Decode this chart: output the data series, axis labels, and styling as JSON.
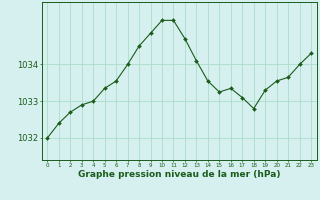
{
  "x": [
    0,
    1,
    2,
    3,
    4,
    5,
    6,
    7,
    8,
    9,
    10,
    11,
    12,
    13,
    14,
    15,
    16,
    17,
    18,
    19,
    20,
    21,
    22,
    23
  ],
  "y": [
    1032.0,
    1032.4,
    1032.7,
    1032.9,
    1033.0,
    1033.35,
    1033.55,
    1034.0,
    1034.5,
    1034.85,
    1035.2,
    1035.2,
    1034.7,
    1034.1,
    1033.55,
    1033.25,
    1033.35,
    1033.1,
    1032.8,
    1033.3,
    1033.55,
    1033.65,
    1034.0,
    1034.3
  ],
  "plot_bg_color": "#d6f0f0",
  "bottom_bg_color": "#d6f0f0",
  "line_color": "#1a5c1a",
  "marker_color": "#1a5c1a",
  "grid_color": "#aaddcc",
  "xlabel": "Graphe pression niveau de la mer (hPa)",
  "xlabel_color": "#1a5c1a",
  "tick_label_color": "#1a5c1a",
  "spine_color": "#1a5c1a",
  "yticks": [
    1032,
    1033,
    1034
  ],
  "ylim": [
    1031.4,
    1035.7
  ],
  "xlim": [
    -0.5,
    23.5
  ],
  "xtick_fontsize": 4.0,
  "ytick_fontsize": 6.0,
  "xlabel_fontsize": 6.5
}
